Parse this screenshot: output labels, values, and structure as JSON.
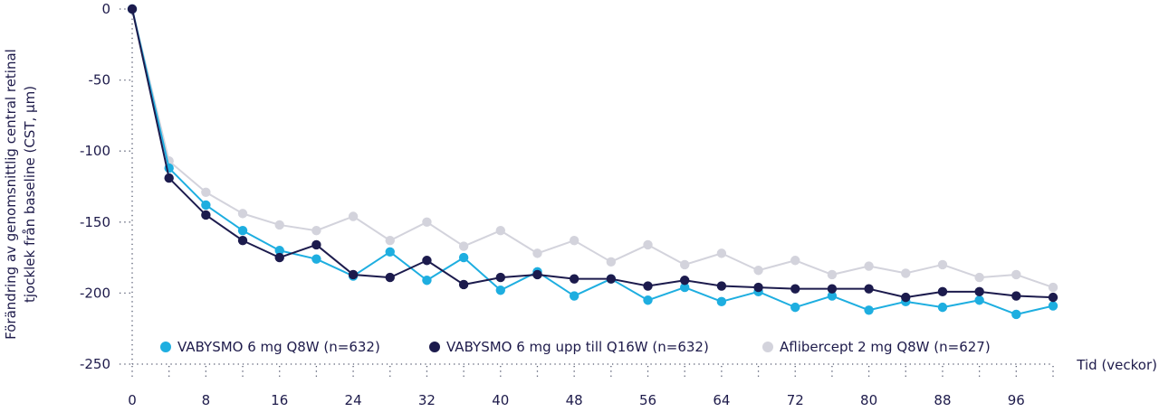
{
  "chart_data": {
    "type": "line",
    "title": "",
    "ylabel_lines": [
      "Förändring av genomsnittlig central retinal",
      "tjocklek från baseline (CST, µm)"
    ],
    "xlabel": "Tid (veckor)",
    "xlim": [
      0,
      100
    ],
    "ylim": [
      -250,
      0
    ],
    "x_ticks": [
      0,
      8,
      16,
      24,
      32,
      40,
      48,
      56,
      64,
      72,
      80,
      88,
      96
    ],
    "y_ticks": [
      0,
      -50,
      -100,
      -150,
      -200,
      -250
    ],
    "legend_position": "bottom-left",
    "x": [
      0,
      4,
      8,
      12,
      16,
      20,
      24,
      28,
      32,
      36,
      40,
      44,
      48,
      52,
      56,
      60,
      64,
      68,
      72,
      76,
      80,
      84,
      88,
      92,
      96,
      100
    ],
    "series": [
      {
        "name": "Aflibercept 2 mg Q8W (n=627)",
        "color": "#d3d3dc",
        "values": [
          0,
          -107,
          -129,
          -144,
          -152,
          -156,
          -146,
          -163,
          -150,
          -167,
          -156,
          -172,
          -163,
          -178,
          -166,
          -180,
          -172,
          -184,
          -177,
          -187,
          -181,
          -186,
          -180,
          -189,
          -187,
          -196
        ]
      },
      {
        "name": "VABYSMO 6 mg Q8W (n=632)",
        "color": "#1eaee0",
        "values": [
          0,
          -112,
          -138,
          -156,
          -170,
          -176,
          -188,
          -171,
          -191,
          -175,
          -198,
          -185,
          -202,
          -190,
          -205,
          -196,
          -206,
          -199,
          -210,
          -202,
          -212,
          -206,
          -210,
          -205,
          -215,
          -209
        ]
      },
      {
        "name": "VABYSMO 6 mg upp till Q16W (n=632)",
        "color": "#1c1b4d",
        "values": [
          0,
          -119,
          -145,
          -163,
          -175,
          -166,
          -187,
          -189,
          -177,
          -194,
          -189,
          -187,
          -190,
          -190,
          -195,
          -191,
          -195,
          -196,
          -197,
          -197,
          -197,
          -203,
          -199,
          -199,
          -202,
          -203
        ]
      }
    ],
    "legend_order": [
      1,
      2,
      0
    ]
  }
}
